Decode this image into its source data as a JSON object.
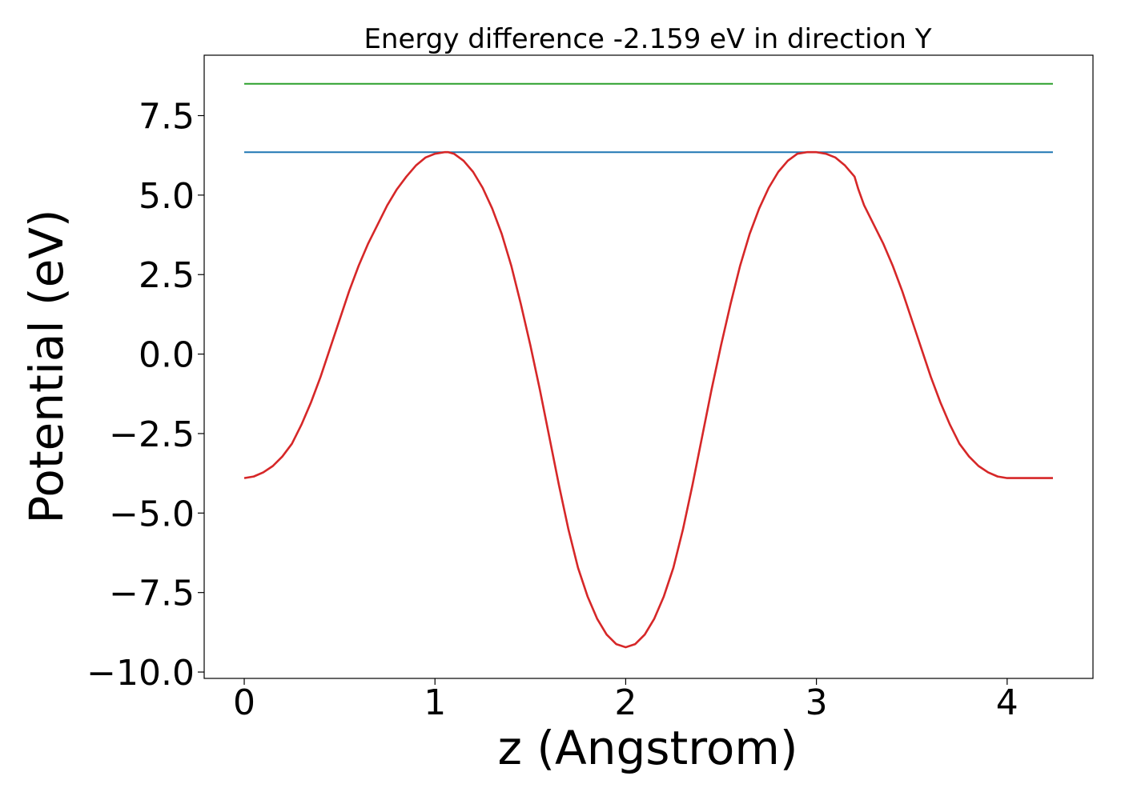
{
  "chart_data": {
    "type": "line",
    "title": "Energy difference -2.159 eV in direction Y",
    "xlabel": "z (Angstrom)",
    "ylabel": "Potential (eV)",
    "xlim": [
      -0.21,
      4.45
    ],
    "ylim": [
      -10.2,
      9.4
    ],
    "xticks": [
      0,
      1,
      2,
      3,
      4
    ],
    "xtick_labels": [
      "0",
      "1",
      "2",
      "3",
      "4"
    ],
    "yticks": [
      7.5,
      5.0,
      2.5,
      0.0,
      -2.5,
      -5.0,
      -7.5,
      -10.0
    ],
    "ytick_labels": [
      "7.5",
      "5.0",
      "2.5",
      "0.0",
      "−2.5",
      "−5.0",
      "−7.5",
      "−10.0"
    ],
    "grid": false,
    "series": [
      {
        "color": "#2ca02c",
        "x": [
          0.0,
          4.24
        ],
        "y": [
          8.5,
          8.5
        ]
      },
      {
        "color": "#1f77b4",
        "x": [
          0.0,
          4.24
        ],
        "y": [
          6.35,
          6.35
        ]
      },
      {
        "color": "#d62728",
        "x": [
          0.0,
          0.05,
          0.1,
          0.15,
          0.2,
          0.25,
          0.3,
          0.35,
          0.4,
          0.45,
          0.5,
          0.55,
          0.6,
          0.65,
          0.7,
          0.75,
          0.8,
          0.85,
          0.9,
          0.95,
          1.0,
          1.05,
          1.07,
          1.1,
          1.15,
          1.2,
          1.25,
          1.3,
          1.35,
          1.4,
          1.45,
          1.5,
          1.55,
          1.6,
          1.65,
          1.7,
          1.75,
          1.8,
          1.85,
          1.9,
          1.95,
          2.0,
          2.05,
          2.1,
          2.15,
          2.2,
          2.25,
          2.3,
          2.35,
          2.4,
          2.45,
          2.5,
          2.55,
          2.6,
          2.65,
          2.7,
          2.75,
          2.8,
          2.85,
          2.9,
          2.95,
          3.0,
          3.05,
          3.1,
          3.15,
          3.2,
          3.22,
          3.25,
          3.3,
          3.35,
          3.4,
          3.45,
          3.5,
          3.55,
          3.6,
          3.65,
          3.7,
          3.75,
          3.8,
          3.85,
          3.9,
          3.95,
          4.0,
          4.05,
          4.1,
          4.15,
          4.2,
          4.24
        ],
        "y": [
          -3.9,
          -3.85,
          -3.72,
          -3.52,
          -3.22,
          -2.82,
          -2.22,
          -1.52,
          -0.72,
          0.18,
          1.08,
          1.98,
          2.78,
          3.48,
          4.08,
          4.68,
          5.18,
          5.58,
          5.93,
          6.18,
          6.3,
          6.35,
          6.35,
          6.3,
          6.08,
          5.73,
          5.23,
          4.58,
          3.78,
          2.78,
          1.58,
          0.28,
          -1.12,
          -2.62,
          -4.12,
          -5.52,
          -6.72,
          -7.62,
          -8.32,
          -8.82,
          -9.12,
          -9.22,
          -9.12,
          -8.82,
          -8.32,
          -7.62,
          -6.72,
          -5.52,
          -4.12,
          -2.62,
          -1.12,
          0.28,
          1.58,
          2.78,
          3.78,
          4.58,
          5.23,
          5.73,
          6.08,
          6.3,
          6.35,
          6.35,
          6.3,
          6.18,
          5.93,
          5.58,
          5.18,
          4.68,
          4.08,
          3.48,
          2.78,
          1.98,
          1.08,
          0.18,
          -0.72,
          -1.52,
          -2.22,
          -2.82,
          -3.22,
          -3.52,
          -3.72,
          -3.85,
          -3.9,
          -3.9,
          -3.9,
          -3.9,
          -3.9,
          -3.9
        ]
      }
    ]
  }
}
